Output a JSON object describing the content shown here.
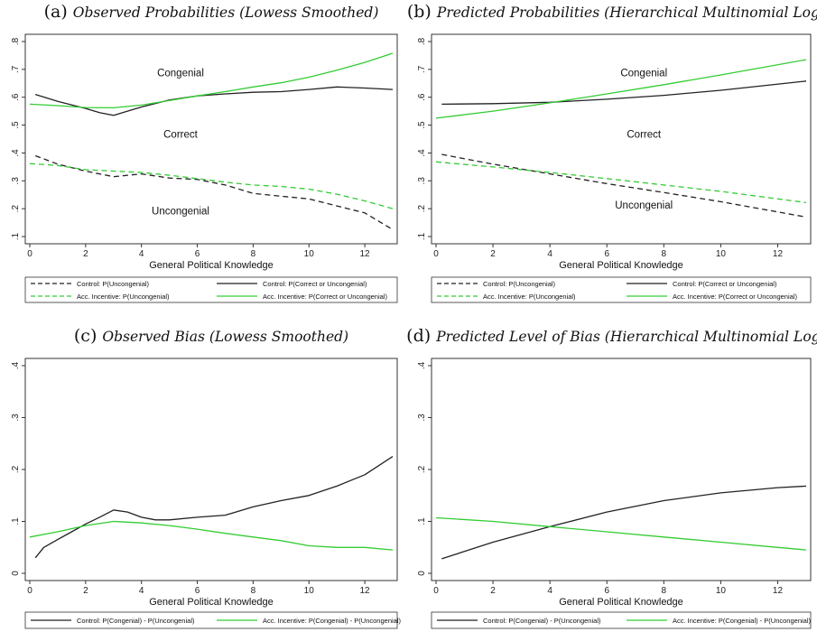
{
  "chart_data": [
    {
      "id": "a",
      "type": "line",
      "letter": "(a)",
      "title": "Observed Probabilities (Lowess Smoothed)",
      "xlabel": "General Political Knowledge",
      "ylabel": "",
      "xlim": [
        0,
        13
      ],
      "ylim": [
        0.1,
        0.8
      ],
      "xticks": [
        0,
        2,
        4,
        6,
        8,
        10,
        12
      ],
      "yticks": [
        0.1,
        0.2,
        0.3,
        0.4,
        0.5,
        0.6,
        0.7,
        0.8
      ],
      "ytick_labels": [
        ".1",
        ".2",
        ".3",
        ".4",
        ".5",
        ".6",
        ".7",
        ".8"
      ],
      "grid": false,
      "legend_position": "bottom",
      "annotations": [
        {
          "text": "Congenial",
          "x": 5.4,
          "y": 0.675
        },
        {
          "text": "Correct",
          "x": 5.4,
          "y": 0.455
        },
        {
          "text": "Uncongenial",
          "x": 5.4,
          "y": 0.18
        }
      ],
      "series": [
        {
          "name": "Control: P(Uncongenial)",
          "color": "#222222",
          "dash": "dash",
          "x": [
            0.2,
            1,
            2,
            3,
            4,
            5,
            6,
            7,
            8,
            9,
            10,
            11,
            12,
            13
          ],
          "y": [
            0.39,
            0.36,
            0.335,
            0.315,
            0.325,
            0.31,
            0.305,
            0.285,
            0.255,
            0.245,
            0.235,
            0.21,
            0.185,
            0.125
          ]
        },
        {
          "name": "Control: P(Correct or Uncongenial)",
          "color": "#222222",
          "dash": "solid",
          "x": [
            0.2,
            1,
            2,
            2.5,
            3,
            3.5,
            4,
            5,
            6,
            7,
            8,
            9,
            10,
            11,
            12,
            13
          ],
          "y": [
            0.61,
            0.585,
            0.56,
            0.545,
            0.535,
            0.55,
            0.565,
            0.59,
            0.605,
            0.612,
            0.618,
            0.62,
            0.628,
            0.637,
            0.633,
            0.628
          ]
        },
        {
          "name": "Acc. Incentive: P(Uncongenial)",
          "color": "#33cc33",
          "dash": "dash",
          "x": [
            0,
            1,
            2,
            3,
            4,
            5,
            6,
            7,
            8,
            9,
            10,
            11,
            12,
            13
          ],
          "y": [
            0.362,
            0.355,
            0.34,
            0.335,
            0.33,
            0.32,
            0.308,
            0.295,
            0.285,
            0.28,
            0.27,
            0.252,
            0.228,
            0.2
          ]
        },
        {
          "name": "Acc. Incentive: P(Correct or Uncongenial)",
          "color": "#33cc33",
          "dash": "solid",
          "x": [
            0,
            1,
            2,
            3,
            4,
            5,
            6,
            7,
            8,
            9,
            10,
            11,
            12,
            13
          ],
          "y": [
            0.575,
            0.57,
            0.563,
            0.562,
            0.572,
            0.588,
            0.605,
            0.62,
            0.637,
            0.652,
            0.672,
            0.697,
            0.725,
            0.758
          ]
        }
      ]
    },
    {
      "id": "b",
      "type": "line",
      "letter": "(b)",
      "title": "Predicted Probabilities (Hierarchical Multinomial Logit)",
      "xlabel": "General Political Knowledge",
      "ylabel": "",
      "xlim": [
        0,
        13
      ],
      "ylim": [
        0.1,
        0.8
      ],
      "xticks": [
        0,
        2,
        4,
        6,
        8,
        10,
        12
      ],
      "yticks": [
        0.1,
        0.2,
        0.3,
        0.4,
        0.5,
        0.6,
        0.7,
        0.8
      ],
      "ytick_labels": [
        ".1",
        ".2",
        ".3",
        ".4",
        ".5",
        ".6",
        ".7",
        ".8"
      ],
      "grid": false,
      "legend_position": "bottom",
      "annotations": [
        {
          "text": "Congenial",
          "x": 7.3,
          "y": 0.675
        },
        {
          "text": "Correct",
          "x": 7.3,
          "y": 0.455
        },
        {
          "text": "Uncongenial",
          "x": 7.3,
          "y": 0.2
        }
      ],
      "series": [
        {
          "name": "Control: P(Uncongenial)",
          "color": "#222222",
          "dash": "dash",
          "x": [
            0.2,
            2,
            4,
            6,
            8,
            10,
            13
          ],
          "y": [
            0.395,
            0.36,
            0.325,
            0.29,
            0.258,
            0.225,
            0.17
          ]
        },
        {
          "name": "Control: P(Correct or Uncongenial)",
          "color": "#222222",
          "dash": "solid",
          "x": [
            0.2,
            2,
            4,
            6,
            8,
            10,
            13
          ],
          "y": [
            0.575,
            0.577,
            0.582,
            0.593,
            0.607,
            0.625,
            0.658
          ]
        },
        {
          "name": "Acc. Incentive: P(Uncongenial)",
          "color": "#33cc33",
          "dash": "dash",
          "x": [
            0,
            2,
            4,
            6,
            8,
            10,
            13
          ],
          "y": [
            0.368,
            0.35,
            0.33,
            0.308,
            0.285,
            0.262,
            0.222
          ]
        },
        {
          "name": "Acc. Incentive: P(Correct or Uncongenial)",
          "color": "#33cc33",
          "dash": "solid",
          "x": [
            0,
            2,
            4,
            6,
            8,
            10,
            13
          ],
          "y": [
            0.525,
            0.55,
            0.58,
            0.612,
            0.645,
            0.68,
            0.735
          ]
        }
      ]
    },
    {
      "id": "c",
      "type": "line",
      "letter": "(c)",
      "title": "Observed Bias (Lowess Smoothed)",
      "xlabel": "General Political Knowledge",
      "ylabel": "",
      "xlim": [
        0,
        13
      ],
      "ylim": [
        0,
        0.4
      ],
      "xticks": [
        0,
        2,
        4,
        6,
        8,
        10,
        12
      ],
      "yticks": [
        0,
        0.1,
        0.2,
        0.3,
        0.4
      ],
      "ytick_labels": [
        "0",
        ".1",
        ".2",
        ".3",
        ".4"
      ],
      "grid": false,
      "legend_position": "bottom",
      "annotations": [],
      "series": [
        {
          "name": "Control: P(Congenial) - P(Uncongenial)",
          "color": "#222222",
          "dash": "solid",
          "x": [
            0.2,
            0.5,
            1,
            1.5,
            2,
            2.5,
            3,
            3.5,
            4,
            4.5,
            5,
            6,
            7,
            8,
            9,
            10,
            11,
            12,
            13
          ],
          "y": [
            0.03,
            0.05,
            0.065,
            0.08,
            0.095,
            0.108,
            0.122,
            0.118,
            0.108,
            0.103,
            0.103,
            0.108,
            0.112,
            0.128,
            0.14,
            0.15,
            0.168,
            0.19,
            0.225
          ]
        },
        {
          "name": "Acc. Incentive: P(Congenial) - P(Uncongenial)",
          "color": "#33cc33",
          "dash": "solid",
          "x": [
            0,
            1,
            2,
            3,
            4,
            5,
            6,
            7,
            8,
            9,
            10,
            11,
            12,
            13
          ],
          "y": [
            0.07,
            0.08,
            0.092,
            0.1,
            0.097,
            0.092,
            0.085,
            0.077,
            0.07,
            0.063,
            0.053,
            0.05,
            0.05,
            0.045
          ]
        }
      ]
    },
    {
      "id": "d",
      "type": "line",
      "letter": "(d)",
      "title": "Predicted Level of Bias (Hierarchical Multinomial Logit)",
      "xlabel": "General Political Knowledge",
      "ylabel": "",
      "xlim": [
        0,
        13
      ],
      "ylim": [
        0,
        0.4
      ],
      "xticks": [
        0,
        2,
        4,
        6,
        8,
        10,
        12
      ],
      "yticks": [
        0,
        0.1,
        0.2,
        0.3,
        0.4
      ],
      "ytick_labels": [
        "0",
        ".1",
        ".2",
        ".3",
        ".4"
      ],
      "grid": false,
      "legend_position": "bottom",
      "annotations": [],
      "series": [
        {
          "name": "Control: P(Congenial) - P(Uncongenial)",
          "color": "#222222",
          "dash": "solid",
          "x": [
            0.2,
            2,
            4,
            6,
            8,
            10,
            12,
            13
          ],
          "y": [
            0.028,
            0.06,
            0.09,
            0.118,
            0.14,
            0.155,
            0.165,
            0.168
          ]
        },
        {
          "name": "Acc. Incentive: P(Congenial) - P(Uncongenial)",
          "color": "#33cc33",
          "dash": "solid",
          "x": [
            0,
            2,
            4,
            6,
            8,
            10,
            12,
            13
          ],
          "y": [
            0.107,
            0.1,
            0.09,
            0.08,
            0.07,
            0.06,
            0.05,
            0.045
          ]
        }
      ]
    }
  ]
}
